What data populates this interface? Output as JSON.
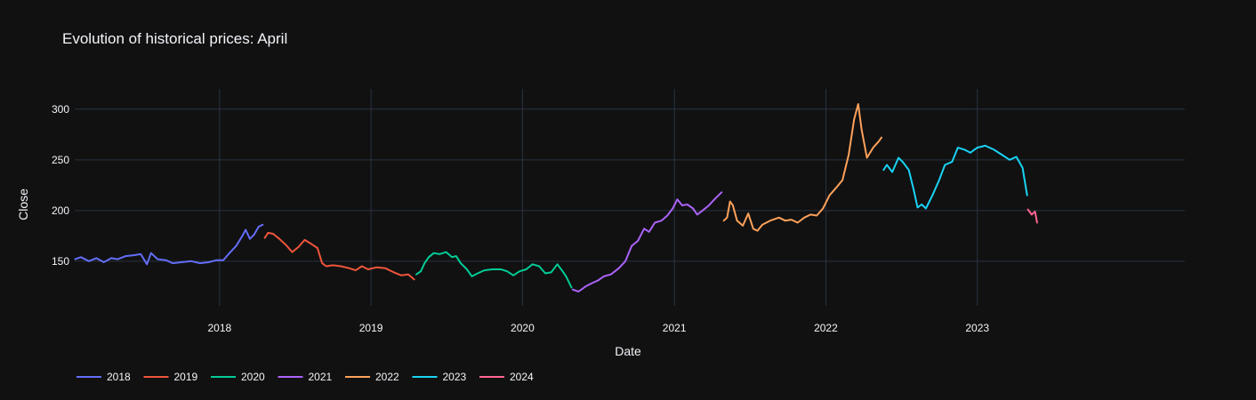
{
  "chart_data": {
    "type": "line",
    "title": "Evolution of historical prices: April",
    "xlabel": "Date",
    "ylabel": "Close",
    "x_axis_type": "date",
    "xlim": [
      "2017-01-17",
      "2024-05-15"
    ],
    "ylim": [
      106,
      320
    ],
    "x_ticks": [
      "2018",
      "2019",
      "2020",
      "2021",
      "2022",
      "2023"
    ],
    "x_tick_dates": [
      "2018-01-01",
      "2019-01-01",
      "2020-01-01",
      "2021-01-01",
      "2022-01-01",
      "2023-01-01"
    ],
    "y_ticks": [
      150,
      200,
      250,
      300
    ],
    "grid": true,
    "legend_position": "bottom-left",
    "background": "#111111",
    "grid_color": "#283442",
    "series": [
      {
        "name": "2018",
        "color": "#636efa",
        "points": [
          [
            "2017-01-18",
            152
          ],
          [
            "2017-02-01",
            154
          ],
          [
            "2017-02-20",
            150
          ],
          [
            "2017-03-10",
            153
          ],
          [
            "2017-03-28",
            149
          ],
          [
            "2017-04-15",
            153
          ],
          [
            "2017-05-01",
            152
          ],
          [
            "2017-05-20",
            155
          ],
          [
            "2017-06-10",
            156
          ],
          [
            "2017-06-25",
            157
          ],
          [
            "2017-07-10",
            147
          ],
          [
            "2017-07-20",
            158
          ],
          [
            "2017-08-05",
            152
          ],
          [
            "2017-08-25",
            151
          ],
          [
            "2017-09-10",
            148
          ],
          [
            "2017-10-01",
            149
          ],
          [
            "2017-10-25",
            150
          ],
          [
            "2017-11-15",
            148
          ],
          [
            "2017-12-05",
            149
          ],
          [
            "2017-12-25",
            151
          ],
          [
            "2018-01-10",
            151
          ],
          [
            "2018-01-25",
            158
          ],
          [
            "2018-02-10",
            165
          ],
          [
            "2018-02-25",
            175
          ],
          [
            "2018-03-05",
            181
          ],
          [
            "2018-03-15",
            172
          ],
          [
            "2018-03-25",
            176
          ],
          [
            "2018-04-05",
            184
          ],
          [
            "2018-04-15",
            186
          ]
        ]
      },
      {
        "name": "2019",
        "color": "#ef553b",
        "points": [
          [
            "2018-04-20",
            173
          ],
          [
            "2018-04-28",
            178
          ],
          [
            "2018-05-10",
            177
          ],
          [
            "2018-05-25",
            172
          ],
          [
            "2018-06-10",
            166
          ],
          [
            "2018-06-25",
            159
          ],
          [
            "2018-07-10",
            164
          ],
          [
            "2018-07-25",
            171
          ],
          [
            "2018-08-10",
            167
          ],
          [
            "2018-08-25",
            163
          ],
          [
            "2018-09-05",
            148
          ],
          [
            "2018-09-15",
            145
          ],
          [
            "2018-10-01",
            146
          ],
          [
            "2018-10-20",
            145
          ],
          [
            "2018-11-10",
            143
          ],
          [
            "2018-11-25",
            141
          ],
          [
            "2018-12-10",
            145
          ],
          [
            "2018-12-25",
            142
          ],
          [
            "2019-01-15",
            144
          ],
          [
            "2019-02-05",
            143
          ],
          [
            "2019-02-25",
            139
          ],
          [
            "2019-03-15",
            136
          ],
          [
            "2019-04-01",
            137
          ],
          [
            "2019-04-15",
            132
          ]
        ]
      },
      {
        "name": "2020",
        "color": "#00cc96",
        "points": [
          [
            "2019-04-20",
            137
          ],
          [
            "2019-05-01",
            140
          ],
          [
            "2019-05-10",
            148
          ],
          [
            "2019-05-20",
            154
          ],
          [
            "2019-06-01",
            158
          ],
          [
            "2019-06-15",
            157
          ],
          [
            "2019-07-01",
            159
          ],
          [
            "2019-07-15",
            154
          ],
          [
            "2019-07-25",
            155
          ],
          [
            "2019-08-05",
            148
          ],
          [
            "2019-08-20",
            142
          ],
          [
            "2019-09-01",
            135
          ],
          [
            "2019-09-15",
            138
          ],
          [
            "2019-10-01",
            141
          ],
          [
            "2019-10-20",
            142
          ],
          [
            "2019-11-10",
            142
          ],
          [
            "2019-11-25",
            140
          ],
          [
            "2019-12-10",
            136
          ],
          [
            "2019-12-25",
            140
          ],
          [
            "2020-01-10",
            142
          ],
          [
            "2020-01-25",
            147
          ],
          [
            "2020-02-10",
            145
          ],
          [
            "2020-02-25",
            138
          ],
          [
            "2020-03-10",
            139
          ],
          [
            "2020-03-25",
            147
          ],
          [
            "2020-04-05",
            141
          ],
          [
            "2020-04-15",
            135
          ],
          [
            "2020-04-28",
            124
          ]
        ]
      },
      {
        "name": "2021",
        "color": "#ab63fa",
        "points": [
          [
            "2020-05-01",
            122
          ],
          [
            "2020-05-15",
            120
          ],
          [
            "2020-06-01",
            125
          ],
          [
            "2020-06-15",
            128
          ],
          [
            "2020-07-01",
            131
          ],
          [
            "2020-07-15",
            135
          ],
          [
            "2020-08-01",
            137
          ],
          [
            "2020-08-20",
            143
          ],
          [
            "2020-09-05",
            150
          ],
          [
            "2020-09-20",
            165
          ],
          [
            "2020-10-05",
            170
          ],
          [
            "2020-10-20",
            182
          ],
          [
            "2020-11-01",
            179
          ],
          [
            "2020-11-15",
            188
          ],
          [
            "2020-12-01",
            190
          ],
          [
            "2020-12-15",
            195
          ],
          [
            "2020-12-28",
            202
          ],
          [
            "2021-01-08",
            211
          ],
          [
            "2021-01-20",
            205
          ],
          [
            "2021-02-01",
            206
          ],
          [
            "2021-02-15",
            202
          ],
          [
            "2021-02-25",
            196
          ],
          [
            "2021-03-10",
            200
          ],
          [
            "2021-03-25",
            205
          ],
          [
            "2021-04-10",
            212
          ],
          [
            "2021-04-25",
            218
          ]
        ]
      },
      {
        "name": "2022",
        "color": "#ffa15a",
        "points": [
          [
            "2021-04-30",
            190
          ],
          [
            "2021-05-08",
            193
          ],
          [
            "2021-05-15",
            209
          ],
          [
            "2021-05-22",
            205
          ],
          [
            "2021-06-01",
            190
          ],
          [
            "2021-06-15",
            185
          ],
          [
            "2021-06-28",
            197
          ],
          [
            "2021-07-10",
            182
          ],
          [
            "2021-07-20",
            180
          ],
          [
            "2021-08-01",
            186
          ],
          [
            "2021-08-20",
            190
          ],
          [
            "2021-09-10",
            193
          ],
          [
            "2021-09-25",
            190
          ],
          [
            "2021-10-10",
            191
          ],
          [
            "2021-10-25",
            188
          ],
          [
            "2021-11-10",
            193
          ],
          [
            "2021-11-25",
            196
          ],
          [
            "2021-12-10",
            195
          ],
          [
            "2021-12-25",
            202
          ],
          [
            "2022-01-10",
            215
          ],
          [
            "2022-01-25",
            222
          ],
          [
            "2022-02-10",
            230
          ],
          [
            "2022-02-25",
            255
          ],
          [
            "2022-03-10",
            290
          ],
          [
            "2022-03-20",
            305
          ],
          [
            "2022-03-28",
            280
          ],
          [
            "2022-04-10",
            252
          ],
          [
            "2022-04-25",
            262
          ],
          [
            "2022-05-08",
            268
          ],
          [
            "2022-05-15",
            272
          ]
        ]
      },
      {
        "name": "2023",
        "color": "#19d3f3",
        "points": [
          [
            "2022-05-20",
            240
          ],
          [
            "2022-05-28",
            245
          ],
          [
            "2022-06-10",
            238
          ],
          [
            "2022-06-25",
            252
          ],
          [
            "2022-07-05",
            248
          ],
          [
            "2022-07-20",
            240
          ],
          [
            "2022-08-01",
            220
          ],
          [
            "2022-08-10",
            203
          ],
          [
            "2022-08-20",
            206
          ],
          [
            "2022-08-30",
            202
          ],
          [
            "2022-09-15",
            215
          ],
          [
            "2022-10-01",
            230
          ],
          [
            "2022-10-15",
            245
          ],
          [
            "2022-11-01",
            248
          ],
          [
            "2022-11-15",
            262
          ],
          [
            "2022-12-01",
            260
          ],
          [
            "2022-12-15",
            257
          ],
          [
            "2023-01-01",
            262
          ],
          [
            "2023-01-20",
            264
          ],
          [
            "2023-02-10",
            260
          ],
          [
            "2023-03-01",
            255
          ],
          [
            "2023-03-20",
            250
          ],
          [
            "2023-04-05",
            253
          ],
          [
            "2023-04-20",
            242
          ],
          [
            "2023-05-01",
            215
          ]
        ]
      },
      {
        "name": "2024",
        "color": "#ff6692",
        "points": [
          [
            "2023-05-03",
            201
          ],
          [
            "2023-05-12",
            196
          ],
          [
            "2023-05-20",
            199
          ],
          [
            "2023-05-25",
            188
          ]
        ]
      }
    ]
  }
}
